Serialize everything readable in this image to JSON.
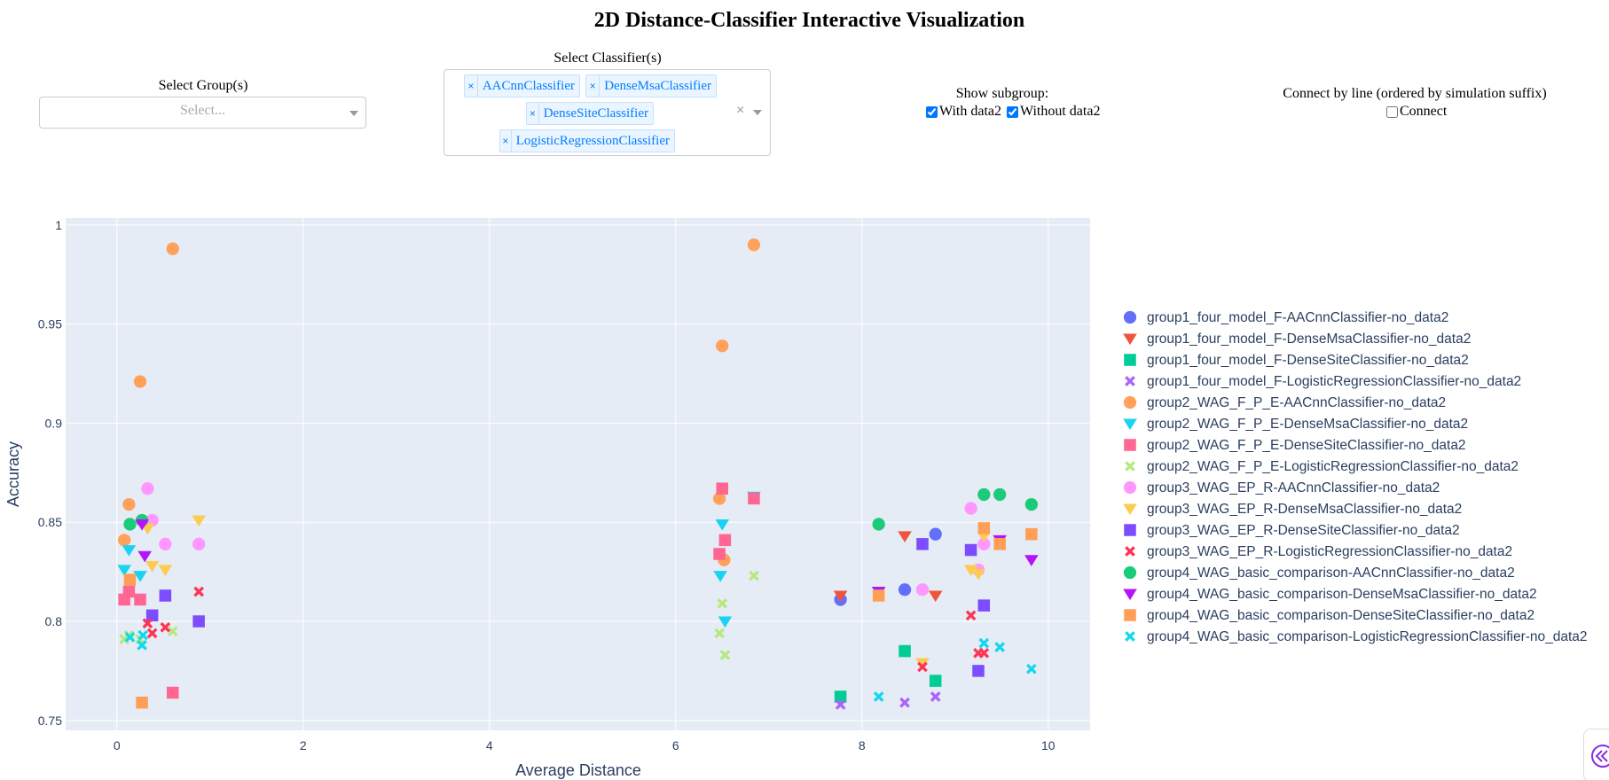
{
  "page": {
    "title": "2D Distance-Classifier Interactive Visualization"
  },
  "controls": {
    "group": {
      "label": "Select Group(s)",
      "placeholder": "Select..."
    },
    "classifier": {
      "label": "Select Classifier(s)",
      "tags": [
        "AACnnClassifier",
        "DenseMsaClassifier",
        "DenseSiteClassifier",
        "LogisticRegressionClassifier"
      ],
      "clear_glyph": "×",
      "remove_glyph": "×"
    },
    "subgroup": {
      "label": "Show subgroup:",
      "options": [
        {
          "label": "With data2",
          "checked": true
        },
        {
          "label": "Without data2",
          "checked": true
        }
      ]
    },
    "connect": {
      "label": "Connect by line (ordered by simulation suffix)",
      "option": {
        "label": "Connect",
        "checked": false
      }
    }
  },
  "side_button": {
    "icon": "double-chevron-left-icon"
  },
  "chart_data": {
    "type": "scatter",
    "xlabel": "Average Distance",
    "ylabel": "Accuracy",
    "xlim": [
      -0.55,
      10.45
    ],
    "ylim": [
      0.745,
      1.0035
    ],
    "xticks": [
      0,
      2,
      4,
      6,
      8,
      10
    ],
    "yticks": [
      0.75,
      0.8,
      0.85,
      0.9,
      0.95,
      1
    ],
    "ytick_labels": [
      "0.75",
      "0.8",
      "0.85",
      "0.9",
      "0.95",
      "1"
    ],
    "grid": true,
    "legend_position": "right",
    "series": [
      {
        "name": "group1_four_model_F-AACnnClassifier-no_data2",
        "color": "#636efa",
        "symbol": "circle",
        "x": [
          7.77,
          8.46,
          8.79
        ],
        "y": [
          0.811,
          0.816,
          0.844
        ]
      },
      {
        "name": "group1_four_model_F-DenseMsaClassifier-no_data2",
        "color": "#ef553b",
        "symbol": "triangle-down",
        "x": [
          7.77,
          8.46,
          8.79
        ],
        "y": [
          0.813,
          0.843,
          0.813
        ]
      },
      {
        "name": "group1_four_model_F-DenseSiteClassifier-no_data2",
        "color": "#00cc96",
        "symbol": "square",
        "x": [
          7.77,
          8.46,
          8.79
        ],
        "y": [
          0.762,
          0.785,
          0.77
        ]
      },
      {
        "name": "group1_four_model_F-LogisticRegressionClassifier-no_data2",
        "color": "#ab63fa",
        "symbol": "x",
        "x": [
          7.77,
          8.46,
          8.79
        ],
        "y": [
          0.758,
          0.759,
          0.762
        ]
      },
      {
        "name": "group2_WAG_F_P_E-AACnnClassifier-no_data2",
        "color": "#ffa15a",
        "symbol": "circle",
        "x": [
          0.08,
          0.13,
          0.25,
          0.6,
          6.47,
          6.5,
          6.52,
          6.84
        ],
        "y": [
          0.841,
          0.859,
          0.921,
          0.988,
          0.862,
          0.939,
          0.831,
          0.99
        ]
      },
      {
        "name": "group2_WAG_F_P_E-DenseMsaClassifier-no_data2",
        "color": "#19d3f3",
        "symbol": "triangle-down",
        "x": [
          0.08,
          0.13,
          0.25,
          6.48,
          6.5,
          6.53,
          6.84
        ],
        "y": [
          0.826,
          0.836,
          0.823,
          0.823,
          0.849,
          0.8,
          0.863
        ]
      },
      {
        "name": "group2_WAG_F_P_E-DenseSiteClassifier-no_data2",
        "color": "#ff6692",
        "symbol": "square",
        "x": [
          0.08,
          0.13,
          0.25,
          0.6,
          6.47,
          6.5,
          6.53,
          6.84
        ],
        "y": [
          0.811,
          0.815,
          0.811,
          0.764,
          0.834,
          0.867,
          0.841,
          0.862
        ]
      },
      {
        "name": "group2_WAG_F_P_E-LogisticRegressionClassifier-no_data2",
        "color": "#b6e880",
        "symbol": "x",
        "x": [
          0.08,
          0.13,
          0.25,
          0.6,
          6.47,
          6.5,
          6.53,
          6.84
        ],
        "y": [
          0.791,
          0.793,
          0.791,
          0.795,
          0.794,
          0.809,
          0.783,
          0.823
        ]
      },
      {
        "name": "group3_WAG_EP_R-AACnnClassifier-no_data2",
        "color": "#ff97ff",
        "symbol": "circle",
        "x": [
          0.33,
          0.38,
          0.52,
          0.88,
          8.65,
          9.17,
          9.25,
          9.31
        ],
        "y": [
          0.867,
          0.851,
          0.839,
          0.839,
          0.816,
          0.857,
          0.826,
          0.839
        ]
      },
      {
        "name": "group3_WAG_EP_R-DenseMsaClassifier-no_data2",
        "color": "#fecb52",
        "symbol": "triangle-down",
        "x": [
          0.33,
          0.38,
          0.52,
          0.88,
          8.65,
          9.17,
          9.25,
          9.31
        ],
        "y": [
          0.847,
          0.828,
          0.826,
          0.851,
          0.779,
          0.826,
          0.824,
          0.843
        ]
      },
      {
        "name": "group3_WAG_EP_R-DenseSiteClassifier-no_data2",
        "color": "#7c4dff",
        "symbol": "square",
        "x": [
          0.38,
          0.52,
          0.88,
          8.65,
          9.17,
          9.25,
          9.31
        ],
        "y": [
          0.803,
          0.813,
          0.8,
          0.839,
          0.836,
          0.775,
          0.808
        ]
      },
      {
        "name": "group3_WAG_EP_R-LogisticRegressionClassifier-no_data2",
        "color": "#ff3355",
        "symbol": "x",
        "x": [
          0.33,
          0.38,
          0.52,
          0.88,
          8.65,
          9.17,
          9.25,
          9.31
        ],
        "y": [
          0.799,
          0.794,
          0.797,
          0.815,
          0.777,
          0.803,
          0.784,
          0.784
        ]
      },
      {
        "name": "group4_WAG_basic_comparison-AACnnClassifier-no_data2",
        "color": "#1ccb7a",
        "symbol": "circle",
        "x": [
          0.14,
          0.27,
          8.18,
          9.31,
          9.48,
          9.82
        ],
        "y": [
          0.849,
          0.851,
          0.849,
          0.864,
          0.864,
          0.859
        ]
      },
      {
        "name": "group4_WAG_basic_comparison-DenseMsaClassifier-no_data2",
        "color": "#b414fa",
        "symbol": "triangle-down",
        "x": [
          0.27,
          0.3,
          8.18,
          9.48,
          9.82
        ],
        "y": [
          0.849,
          0.833,
          0.815,
          0.841,
          0.831
        ]
      },
      {
        "name": "group4_WAG_basic_comparison-DenseSiteClassifier-no_data2",
        "color": "#ff9f55",
        "symbol": "square",
        "x": [
          0.14,
          0.27,
          8.18,
          9.31,
          9.48,
          9.82
        ],
        "y": [
          0.821,
          0.759,
          0.813,
          0.847,
          0.839,
          0.844
        ]
      },
      {
        "name": "group4_WAG_basic_comparison-LogisticRegressionClassifier-no_data2",
        "color": "#12d8ee",
        "symbol": "x",
        "x": [
          0.14,
          0.27,
          0.28,
          8.18,
          9.31,
          9.48,
          9.82
        ],
        "y": [
          0.792,
          0.788,
          0.793,
          0.762,
          0.789,
          0.787,
          0.776
        ]
      }
    ]
  }
}
